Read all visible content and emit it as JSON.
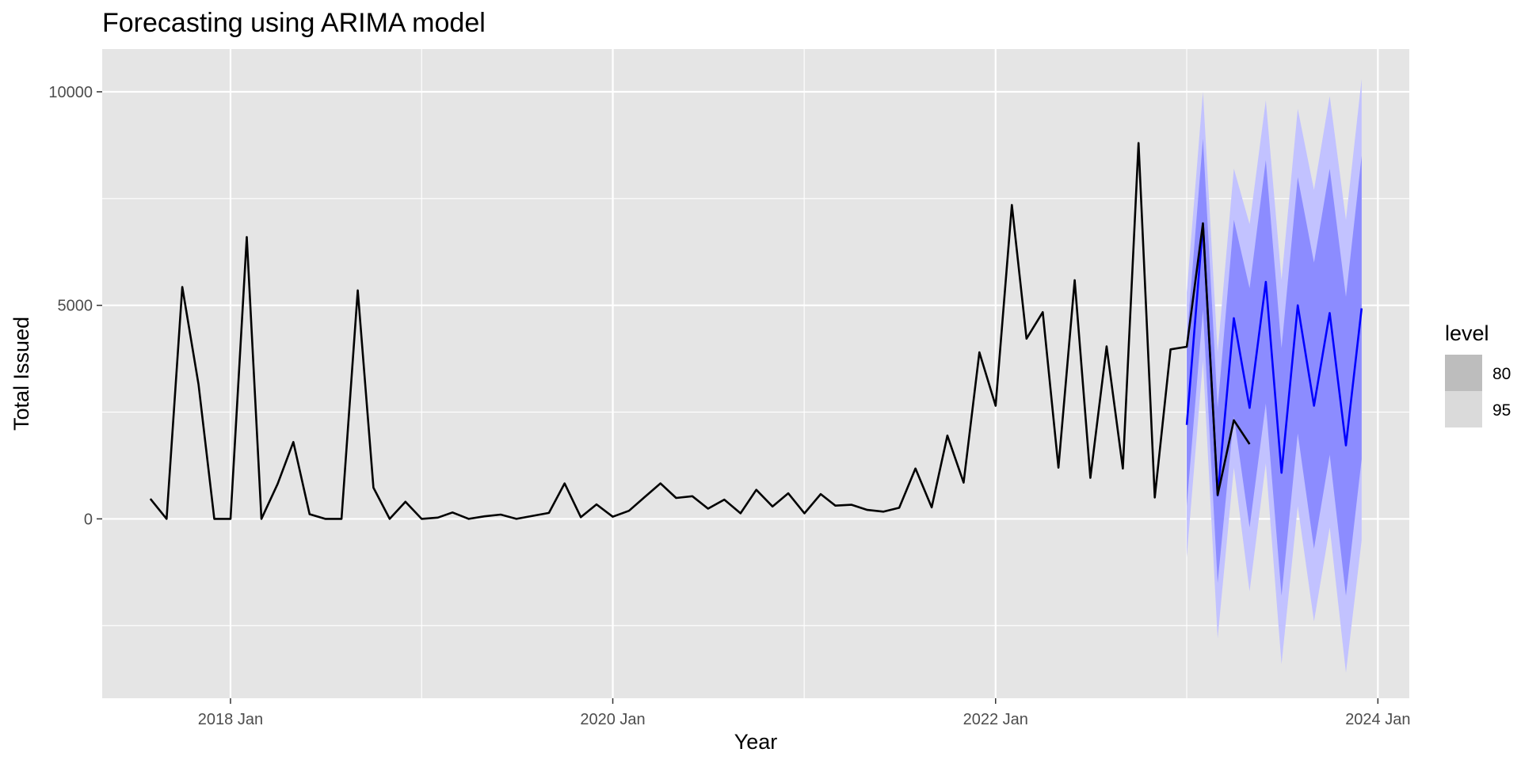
{
  "chart_data": {
    "type": "line",
    "title": "Forecasting using ARIMA model",
    "xlabel": "Year",
    "ylabel": "Total Issued",
    "x_ticks": [
      {
        "label": "2018 Jan",
        "date": "2018-01-01"
      },
      {
        "label": "2020 Jan",
        "date": "2020-01-01"
      },
      {
        "label": "2022 Jan",
        "date": "2022-01-01"
      },
      {
        "label": "2024 Jan",
        "date": "2024-01-01"
      }
    ],
    "y_ticks": [
      0,
      5000,
      10000
    ],
    "xlim": [
      "2017-05-01",
      "2024-03-01"
    ],
    "ylim": [
      -4200,
      11000
    ],
    "grid": true,
    "colors": {
      "panel": "#e5e5e5",
      "grid": "#ffffff",
      "actual": "#000000",
      "forecast": "#0000ff",
      "band80": "#8c8cff",
      "band95": "#c2c2ff"
    },
    "legend": {
      "title": "level",
      "position": "right",
      "items": [
        {
          "label": "80",
          "color": "#bdbdbd"
        },
        {
          "label": "95",
          "color": "#dadada"
        }
      ]
    },
    "series": [
      {
        "values": [
          [
            "2017-08-01",
            470
          ],
          [
            "2017-09-01",
            0
          ],
          [
            "2017-10-01",
            5430
          ],
          [
            "2017-11-01",
            3150
          ],
          [
            "2017-12-01",
            0
          ],
          [
            "2018-01-01",
            0
          ],
          [
            "2018-02-01",
            6600
          ],
          [
            "2018-03-01",
            0
          ],
          [
            "2018-04-01",
            820
          ],
          [
            "2018-05-01",
            1800
          ],
          [
            "2018-06-01",
            110
          ],
          [
            "2018-07-01",
            0
          ],
          [
            "2018-08-01",
            0
          ],
          [
            "2018-09-01",
            5350
          ],
          [
            "2018-10-01",
            730
          ],
          [
            "2018-11-01",
            0
          ],
          [
            "2018-12-01",
            400
          ],
          [
            "2019-01-01",
            0
          ],
          [
            "2019-02-01",
            30
          ],
          [
            "2019-03-01",
            150
          ],
          [
            "2019-04-01",
            0
          ],
          [
            "2019-05-01",
            60
          ],
          [
            "2019-06-01",
            100
          ],
          [
            "2019-07-01",
            0
          ],
          [
            "2019-08-01",
            70
          ],
          [
            "2019-09-01",
            140
          ],
          [
            "2019-10-01",
            830
          ],
          [
            "2019-11-01",
            40
          ],
          [
            "2019-12-01",
            340
          ],
          [
            "2020-01-01",
            50
          ],
          [
            "2020-02-01",
            190
          ],
          [
            "2020-03-01",
            500
          ],
          [
            "2020-04-01",
            830
          ],
          [
            "2020-05-01",
            490
          ],
          [
            "2020-06-01",
            530
          ],
          [
            "2020-07-01",
            240
          ],
          [
            "2020-08-01",
            450
          ],
          [
            "2020-09-01",
            130
          ],
          [
            "2020-10-01",
            680
          ],
          [
            "2020-11-01",
            290
          ],
          [
            "2020-12-01",
            600
          ],
          [
            "2021-01-01",
            130
          ],
          [
            "2021-02-01",
            580
          ],
          [
            "2021-03-01",
            310
          ],
          [
            "2021-04-01",
            330
          ],
          [
            "2021-05-01",
            210
          ],
          [
            "2021-06-01",
            170
          ],
          [
            "2021-07-01",
            260
          ],
          [
            "2021-08-01",
            1180
          ],
          [
            "2021-09-01",
            270
          ],
          [
            "2021-10-01",
            1950
          ],
          [
            "2021-11-01",
            850
          ],
          [
            "2021-12-01",
            3900
          ],
          [
            "2022-01-01",
            2650
          ],
          [
            "2022-02-01",
            7350
          ],
          [
            "2022-03-01",
            4220
          ],
          [
            "2022-04-01",
            4840
          ],
          [
            "2022-05-01",
            1200
          ],
          [
            "2022-06-01",
            5590
          ],
          [
            "2022-07-01",
            960
          ],
          [
            "2022-08-01",
            4040
          ],
          [
            "2022-09-01",
            1180
          ],
          [
            "2022-10-01",
            8800
          ],
          [
            "2022-11-01",
            500
          ],
          [
            "2022-12-01",
            3970
          ],
          [
            "2023-01-01",
            4030
          ],
          [
            "2023-02-01",
            6920
          ],
          [
            "2023-03-01",
            560
          ],
          [
            "2023-04-01",
            2310
          ],
          [
            "2023-05-01",
            1750
          ]
        ]
      },
      {
        "values": [
          [
            "2023-01-01",
            2200
          ],
          [
            "2023-02-01",
            6900
          ],
          [
            "2023-03-01",
            550
          ],
          [
            "2023-04-01",
            4700
          ],
          [
            "2023-05-01",
            2600
          ],
          [
            "2023-06-01",
            5550
          ],
          [
            "2023-07-01",
            1080
          ],
          [
            "2023-08-01",
            5000
          ],
          [
            "2023-09-01",
            2650
          ],
          [
            "2023-10-01",
            4820
          ],
          [
            "2023-11-01",
            1720
          ],
          [
            "2023-12-01",
            4930
          ]
        ],
        "interval80": [
          [
            300,
            4200
          ],
          [
            4900,
            8900
          ],
          [
            -1500,
            2600
          ],
          [
            2400,
            7000
          ],
          [
            -200,
            5400
          ],
          [
            2700,
            8400
          ],
          [
            -1800,
            4000
          ],
          [
            2000,
            8000
          ],
          [
            -700,
            6000
          ],
          [
            1500,
            8200
          ],
          [
            -1800,
            5200
          ],
          [
            1400,
            8500
          ]
        ],
        "interval95": [
          [
            -900,
            5300
          ],
          [
            3700,
            10000
          ],
          [
            -2800,
            3900
          ],
          [
            1200,
            8200
          ],
          [
            -1700,
            6900
          ],
          [
            1300,
            9800
          ],
          [
            -3400,
            5600
          ],
          [
            300,
            9600
          ],
          [
            -2400,
            7700
          ],
          [
            -200,
            9900
          ],
          [
            -3600,
            7000
          ],
          [
            -500,
            10300
          ]
        ]
      }
    ]
  }
}
